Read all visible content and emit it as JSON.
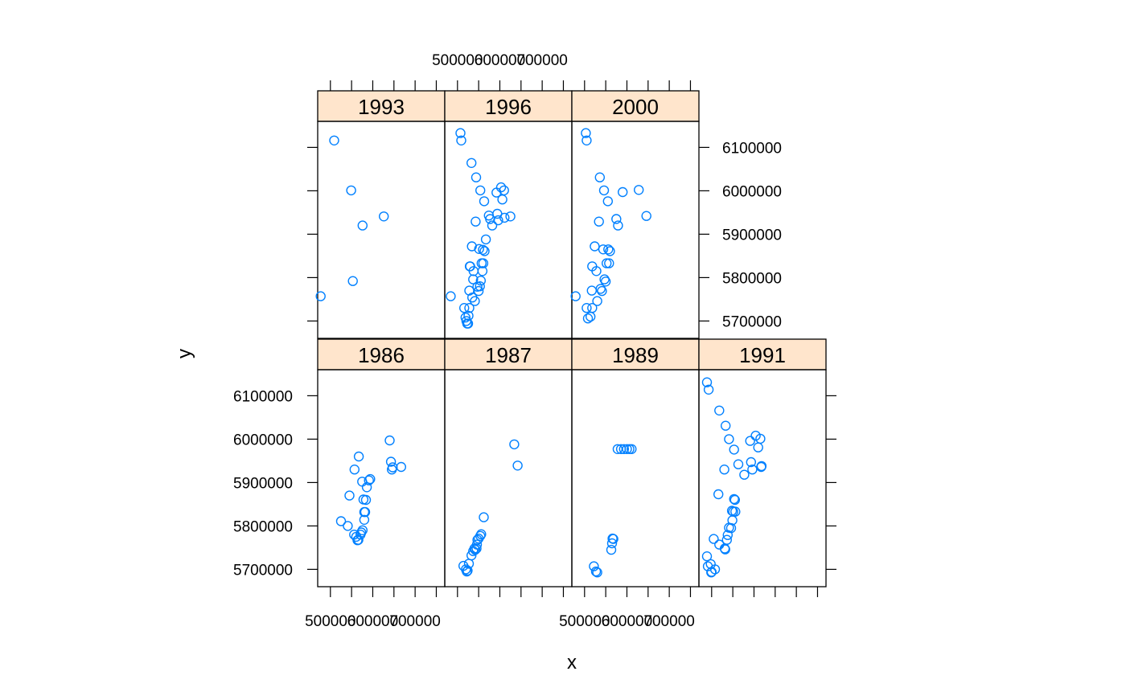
{
  "chart_data": {
    "type": "scatter",
    "layout": "lattice panels, 4 columns x 2 rows",
    "xlabel": "x",
    "ylabel": "y",
    "xlim": [
      470000,
      770000
    ],
    "ylim": [
      5660000,
      6160000
    ],
    "x_ticks": [
      500000,
      550000,
      600000,
      650000,
      700000,
      750000
    ],
    "x_tick_labels": [
      "500000",
      "",
      "600000",
      "",
      "700000",
      ""
    ],
    "y_ticks": [
      5700000,
      5800000,
      5900000,
      6000000,
      6100000
    ],
    "y_tick_labels": [
      "5700000",
      "5800000",
      "5900000",
      "6000000",
      "6100000"
    ],
    "strip_color": "#ffe5cc",
    "point_color": "#0080ff",
    "grid": false,
    "panels": [
      {
        "label": "1986",
        "points": [
          [
            525000,
            5811000
          ],
          [
            541000,
            5800000
          ],
          [
            545000,
            5870000
          ],
          [
            557000,
            5930000
          ],
          [
            556000,
            5780000
          ],
          [
            561000,
            5775000
          ],
          [
            564000,
            5767000
          ],
          [
            566000,
            5768000
          ],
          [
            567000,
            5960000
          ],
          [
            571000,
            5780000
          ],
          [
            573000,
            5785000
          ],
          [
            576000,
            5790000
          ],
          [
            575000,
            5902000
          ],
          [
            578000,
            5861000
          ],
          [
            580000,
            5832000
          ],
          [
            580000,
            5814000
          ],
          [
            582000,
            5832000
          ],
          [
            584000,
            5860000
          ],
          [
            586000,
            5889000
          ],
          [
            591000,
            5905000
          ],
          [
            594000,
            5908000
          ],
          [
            640000,
            5997000
          ],
          [
            643000,
            5948000
          ],
          [
            645000,
            5930000
          ],
          [
            647000,
            5935000
          ],
          [
            667000,
            5936000
          ]
        ]
      },
      {
        "label": "1987",
        "points": [
          [
            514000,
            5708000
          ],
          [
            520000,
            5700000
          ],
          [
            522000,
            5695000
          ],
          [
            524000,
            5697000
          ],
          [
            527000,
            5713000
          ],
          [
            533000,
            5732000
          ],
          [
            537000,
            5742000
          ],
          [
            540000,
            5748000
          ],
          [
            542000,
            5745000
          ],
          [
            545000,
            5748000
          ],
          [
            546000,
            5757000
          ],
          [
            547000,
            5768000
          ],
          [
            550000,
            5771000
          ],
          [
            554000,
            5777000
          ],
          [
            556000,
            5781000
          ],
          [
            562000,
            5820000
          ],
          [
            634000,
            5988000
          ],
          [
            642000,
            5939000
          ]
        ]
      },
      {
        "label": "1989",
        "points": [
          [
            522000,
            5707000
          ],
          [
            527000,
            5695000
          ],
          [
            530000,
            5693000
          ],
          [
            563000,
            5745000
          ],
          [
            565000,
            5760000
          ],
          [
            566000,
            5771000
          ],
          [
            568000,
            5770000
          ],
          [
            578000,
            5977000
          ],
          [
            586000,
            5977000
          ],
          [
            593000,
            5977000
          ],
          [
            600000,
            5977000
          ],
          [
            606000,
            5977000
          ],
          [
            611000,
            5977000
          ]
        ]
      },
      {
        "label": "1991",
        "points": [
          [
            489000,
            6131000
          ],
          [
            493000,
            6114000
          ],
          [
            518000,
            6066000
          ],
          [
            533000,
            6031000
          ],
          [
            541000,
            6000000
          ],
          [
            553000,
            5976000
          ],
          [
            563000,
            5942000
          ],
          [
            577000,
            5918000
          ],
          [
            591000,
            5996000
          ],
          [
            593000,
            5947000
          ],
          [
            596000,
            5930000
          ],
          [
            604000,
            6008000
          ],
          [
            610000,
            5981000
          ],
          [
            615000,
            6001000
          ],
          [
            617000,
            5936000
          ],
          [
            618000,
            5938000
          ],
          [
            489000,
            5730000
          ],
          [
            491000,
            5707000
          ],
          [
            498000,
            5712000
          ],
          [
            499000,
            5693000
          ],
          [
            500000,
            5694000
          ],
          [
            505000,
            5770000
          ],
          [
            508000,
            5700000
          ],
          [
            516000,
            5873000
          ],
          [
            518000,
            5757000
          ],
          [
            530000,
            5930000
          ],
          [
            531000,
            5748000
          ],
          [
            532000,
            5746000
          ],
          [
            536000,
            5768000
          ],
          [
            538000,
            5779000
          ],
          [
            541000,
            5796000
          ],
          [
            546000,
            5795000
          ],
          [
            548000,
            5835000
          ],
          [
            549000,
            5813000
          ],
          [
            551000,
            5833000
          ],
          [
            553000,
            5862000
          ],
          [
            555000,
            5860000
          ],
          [
            556000,
            5833000
          ]
        ]
      },
      {
        "label": "1993",
        "points": [
          [
            477000,
            5757000
          ],
          [
            509000,
            6116000
          ],
          [
            549000,
            6001000
          ],
          [
            553000,
            5792000
          ],
          [
            576000,
            5920000
          ],
          [
            626000,
            5941000
          ]
        ]
      },
      {
        "label": "1996",
        "points": [
          [
            484000,
            5757000
          ],
          [
            507000,
            6133000
          ],
          [
            509000,
            6116000
          ],
          [
            516000,
            5730000
          ],
          [
            519000,
            5708000
          ],
          [
            521000,
            5700000
          ],
          [
            523000,
            5694000
          ],
          [
            525000,
            5694000
          ],
          [
            526000,
            5712000
          ],
          [
            528000,
            5730000
          ],
          [
            528000,
            5770000
          ],
          [
            529000,
            5826000
          ],
          [
            530000,
            5826000
          ],
          [
            533000,
            6064000
          ],
          [
            534000,
            5872000
          ],
          [
            535000,
            5754000
          ],
          [
            537000,
            5796000
          ],
          [
            538000,
            5815000
          ],
          [
            541000,
            5746000
          ],
          [
            543000,
            5929000
          ],
          [
            544000,
            6031000
          ],
          [
            547000,
            5779000
          ],
          [
            550000,
            5769000
          ],
          [
            551000,
            5866000
          ],
          [
            553000,
            5780000
          ],
          [
            554000,
            6001000
          ],
          [
            555000,
            5793000
          ],
          [
            557000,
            5833000
          ],
          [
            559000,
            5815000
          ],
          [
            560000,
            5864000
          ],
          [
            561000,
            5833000
          ],
          [
            563000,
            5976000
          ],
          [
            564000,
            5861000
          ],
          [
            567000,
            5888000
          ],
          [
            574000,
            5943000
          ],
          [
            577000,
            5935000
          ],
          [
            582000,
            5920000
          ],
          [
            592000,
            5996000
          ],
          [
            594000,
            5947000
          ],
          [
            596000,
            5932000
          ],
          [
            603000,
            6008000
          ],
          [
            606000,
            5980000
          ],
          [
            610000,
            6001000
          ],
          [
            611000,
            5938000
          ],
          [
            625000,
            5941000
          ]
        ]
      },
      {
        "label": "2000",
        "points": [
          [
            479000,
            5757000
          ],
          [
            503000,
            6133000
          ],
          [
            505000,
            6116000
          ],
          [
            505000,
            5730000
          ],
          [
            508000,
            5706000
          ],
          [
            514000,
            5710000
          ],
          [
            517000,
            5770000
          ],
          [
            518000,
            5730000
          ],
          [
            518000,
            5826000
          ],
          [
            524000,
            5872000
          ],
          [
            528000,
            5815000
          ],
          [
            530000,
            5746000
          ],
          [
            534000,
            5929000
          ],
          [
            536000,
            6031000
          ],
          [
            538000,
            5774000
          ],
          [
            541000,
            5769000
          ],
          [
            544000,
            5865000
          ],
          [
            546000,
            6001000
          ],
          [
            547000,
            5796000
          ],
          [
            550000,
            5791000
          ],
          [
            552000,
            5833000
          ],
          [
            555000,
            5976000
          ],
          [
            556000,
            5865000
          ],
          [
            558000,
            5833000
          ],
          [
            560000,
            5861000
          ],
          [
            575000,
            5935000
          ],
          [
            579000,
            5920000
          ],
          [
            590000,
            5997000
          ],
          [
            628000,
            6002000
          ],
          [
            646000,
            5942000
          ]
        ]
      }
    ]
  }
}
